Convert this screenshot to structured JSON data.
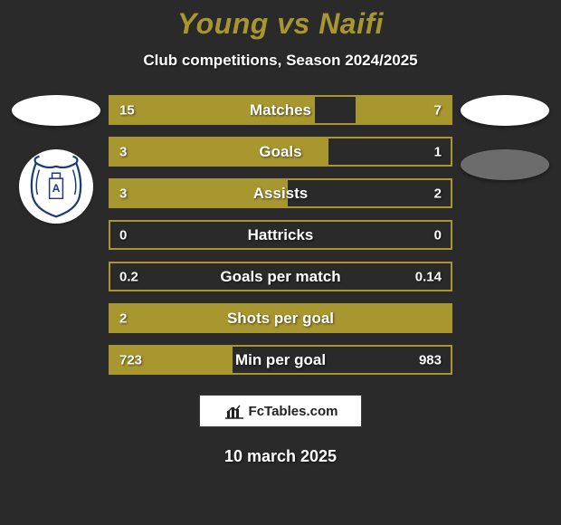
{
  "background_color": "#2a2a2a",
  "title": {
    "text": "Young vs Naifi",
    "color": "#a8962f",
    "fontsize": 32
  },
  "subtitle": {
    "text": "Club competitions, Season 2024/2025",
    "color": "#ffffff",
    "fontsize": 17
  },
  "bars": {
    "border_color": "#a8962f",
    "left_fill_color": "#a8962f",
    "right_fill_color": "#a8962f",
    "label_color": "#ffffff",
    "value_color": "#ffffff",
    "height": 33,
    "rows": [
      {
        "label": "Matches",
        "left_val": "15",
        "right_val": "7",
        "left_pct": 60,
        "right_pct": 28
      },
      {
        "label": "Goals",
        "left_val": "3",
        "right_val": "1",
        "left_pct": 64,
        "right_pct": 0
      },
      {
        "label": "Assists",
        "left_val": "3",
        "right_val": "2",
        "left_pct": 52,
        "right_pct": 0
      },
      {
        "label": "Hattricks",
        "left_val": "0",
        "right_val": "0",
        "left_pct": 0,
        "right_pct": 0
      },
      {
        "label": "Goals per match",
        "left_val": "0.2",
        "right_val": "0.14",
        "left_pct": 0,
        "right_pct": 0
      },
      {
        "label": "Shots per goal",
        "left_val": "2",
        "right_val": "",
        "left_pct": 100,
        "right_pct": 0
      },
      {
        "label": "Min per goal",
        "left_val": "723",
        "right_val": "983",
        "left_pct": 36,
        "right_pct": 0
      }
    ]
  },
  "left_player": {
    "photo_bg": "#ffffff",
    "crest_bg": "#ffffff"
  },
  "right_player": {
    "photo_bg": "#6c6c6c"
  },
  "footer": {
    "logo_text": "FcTables.com",
    "date": "10 march 2025",
    "date_color": "#ffffff"
  }
}
